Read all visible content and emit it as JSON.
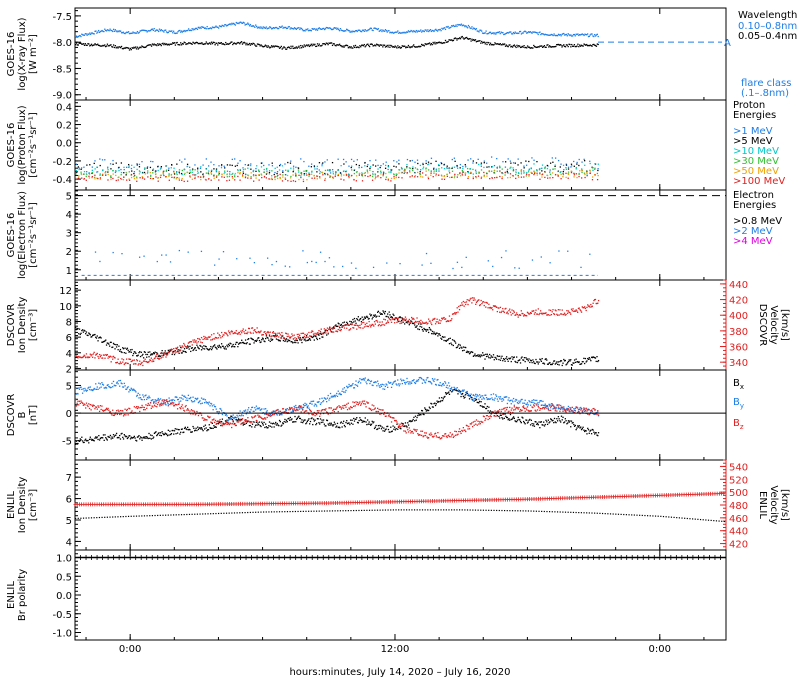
{
  "xaxis": {
    "title": "hours:minutes, July 14, 2020 – July 16, 2020",
    "range_hours": [
      -2.5,
      27
    ],
    "ticks": [
      {
        "hour": 0,
        "label": "0:00"
      },
      {
        "hour": 12,
        "label": "12:00"
      },
      {
        "hour": 24,
        "label": "0:00"
      }
    ]
  },
  "colors": {
    "black": "#000000",
    "blue": "#1e7ee6",
    "cyan": "#00c8c8",
    "green": "#30c030",
    "orange": "#f0a000",
    "red": "#e02020",
    "magenta": "#e000e0"
  },
  "chart_data": [
    {
      "id": "xray",
      "type": "scatter",
      "ylabel": [
        "GOES-16",
        "log(X-ray Flux)",
        "[W m⁻²]"
      ],
      "ylim": [
        -9.1,
        -7.35
      ],
      "yticks": [
        -7.5,
        -8.0,
        -8.5,
        -9.0
      ],
      "ytick_labels": [
        "-7.5",
        "-8.0",
        "-8.5",
        "-9.0"
      ],
      "legend_title": "Wavelength",
      "series": [
        {
          "name": "0.10–0.8nm",
          "color": "blue",
          "x": [
            -2.5,
            -1,
            0,
            1,
            2,
            3,
            4,
            5,
            6,
            7,
            8,
            9,
            10,
            11,
            12,
            13,
            14,
            15,
            16,
            17,
            18,
            19,
            20,
            21.2
          ],
          "y": [
            -7.88,
            -7.75,
            -7.82,
            -7.75,
            -7.8,
            -7.72,
            -7.7,
            -7.62,
            -7.72,
            -7.7,
            -7.76,
            -7.72,
            -7.78,
            -7.74,
            -7.8,
            -7.78,
            -7.75,
            -7.65,
            -7.8,
            -7.82,
            -7.8,
            -7.84,
            -7.85,
            -7.86
          ]
        },
        {
          "name": "0.05–0.4nm",
          "color": "black",
          "x": [
            -2.5,
            -1,
            0,
            1,
            2,
            3,
            4,
            5,
            6,
            7,
            8,
            9,
            10,
            11,
            12,
            13,
            14,
            15,
            16,
            17,
            18,
            19,
            20,
            21.2
          ],
          "y": [
            -8.02,
            -8.05,
            -8.12,
            -8.04,
            -8.02,
            -8.0,
            -8.02,
            -8.0,
            -8.06,
            -8.1,
            -8.06,
            -8.02,
            -8.08,
            -8.04,
            -8.08,
            -8.06,
            -8.0,
            -7.9,
            -8.0,
            -8.05,
            -8.08,
            -8.06,
            -8.05,
            -8.04
          ]
        }
      ],
      "hline": {
        "y": -8.0,
        "color": "blue",
        "label": "A"
      },
      "annotations": [
        {
          "text": "flare class",
          "color": "blue"
        },
        {
          "text": "(.1–.8nm)",
          "color": "blue"
        }
      ]
    },
    {
      "id": "proton",
      "type": "scatter",
      "ylabel": [
        "GOES-16",
        "log(Proton Flux)",
        "[cm⁻²s⁻¹sr⁻¹]"
      ],
      "ylim": [
        -0.52,
        0.47
      ],
      "yticks": [
        0.4,
        0.2,
        0.0,
        -0.2,
        -0.4
      ],
      "ytick_labels": [
        "0.4",
        "0.2",
        "0.0",
        "-0.2",
        "-0.4"
      ],
      "legend_title": [
        "Proton",
        "Energies"
      ],
      "series": [
        {
          "name": ">1 MeV",
          "color": "blue",
          "base": -0.25,
          "spread": 0.08
        },
        {
          "name": ">5 MeV",
          "color": "black",
          "base": -0.28,
          "spread": 0.07
        },
        {
          "name": ">10 MeV",
          "color": "cyan",
          "base": -0.3,
          "spread": 0.06
        },
        {
          "name": ">30 MeV",
          "color": "green",
          "base": -0.33,
          "spread": 0.05
        },
        {
          "name": ">50 MeV",
          "color": "orange",
          "base": -0.36,
          "spread": 0.04
        },
        {
          "name": ">100 MeV",
          "color": "red",
          "base": -0.38,
          "spread": 0.04
        }
      ]
    },
    {
      "id": "electron",
      "type": "scatter",
      "ylabel": [
        "GOES-16",
        "log(Electron Flux)",
        "[cm⁻²s⁻¹sr⁻¹]"
      ],
      "ylim": [
        0.45,
        5.3
      ],
      "yticks": [
        5,
        4,
        3,
        2,
        1
      ],
      "ytick_labels": [
        "5",
        "4",
        "3",
        "2",
        "1"
      ],
      "legend_title": [
        "Electron",
        "Energies"
      ],
      "series": [
        {
          "name": ">0.8 MeV",
          "color": "black",
          "base": 5.0,
          "style": "dashed"
        },
        {
          "name": ">2 MeV",
          "color": "blue",
          "base": 1.6,
          "spread": 0.6
        },
        {
          "name": ">4 MeV",
          "color": "magenta"
        }
      ],
      "hline": {
        "y": 0.7,
        "color": "blue"
      }
    },
    {
      "id": "density_speed",
      "type": "scatter",
      "ylabel": [
        "DSCOVR",
        "Ion Density",
        "[cm⁻³]"
      ],
      "ylim": [
        1.8,
        13.3
      ],
      "yticks": [
        12,
        10,
        8,
        6,
        4,
        2
      ],
      "ytick_labels": [
        "12",
        "10",
        "8",
        "6",
        "4",
        "2"
      ],
      "ylabel_right": [
        "DSCOVR",
        "Velocity",
        "[km/s]"
      ],
      "ylim_right": [
        330,
        445
      ],
      "yticks_right": [
        440,
        420,
        400,
        380,
        360,
        340
      ],
      "ytick_labels_right": [
        "440",
        "420",
        "400",
        "380",
        "360",
        "340"
      ],
      "series": [
        {
          "name": "density",
          "axis": "left",
          "color": "black",
          "x": [
            -2.5,
            -1.5,
            -0.5,
            0.5,
            1.5,
            2.5,
            3.5,
            4.5,
            5.5,
            6.5,
            7.5,
            8.5,
            9.5,
            10.5,
            11.5,
            12.5,
            13.5,
            14.5,
            15.5,
            16.5,
            17.5,
            18.5,
            19.5,
            20.5,
            21.2
          ],
          "y": [
            7.0,
            6.0,
            4.6,
            3.8,
            4.0,
            4.5,
            4.8,
            5.0,
            5.6,
            6.0,
            5.6,
            6.2,
            7.6,
            8.5,
            9.2,
            8.0,
            7.0,
            5.5,
            4.0,
            3.4,
            3.2,
            3.0,
            2.8,
            3.0,
            3.3
          ]
        },
        {
          "name": "velocity",
          "axis": "right",
          "color": "red",
          "x": [
            -2.5,
            -1.5,
            -0.5,
            0.5,
            1.5,
            2.5,
            3.5,
            4.5,
            5.5,
            6.5,
            7.5,
            8.5,
            9.5,
            10.5,
            11.5,
            12.5,
            13.5,
            14.5,
            15,
            15.5,
            16.5,
            17.5,
            18.5,
            19.5,
            20.5,
            21.2
          ],
          "y": [
            348,
            350,
            342,
            340,
            350,
            362,
            372,
            378,
            382,
            376,
            372,
            380,
            384,
            388,
            392,
            395,
            392,
            396,
            415,
            420,
            410,
            402,
            405,
            404,
            408,
            420
          ]
        }
      ]
    },
    {
      "id": "bfield",
      "type": "scatter",
      "ylabel": [
        "DSCOVR",
        "B",
        "[nT]"
      ],
      "ylim": [
        -8.5,
        7.8
      ],
      "yticks": [
        5,
        0,
        -5
      ],
      "ytick_labels": [
        "5",
        "0",
        "-5"
      ],
      "legend": [
        "Bx",
        "By",
        "Bz"
      ],
      "series": [
        {
          "name": "Bx",
          "color": "black",
          "x": [
            -2.5,
            -1.5,
            -0.5,
            0.5,
            1.5,
            2.5,
            3.5,
            4.5,
            5.5,
            6.5,
            7.5,
            8.5,
            9.5,
            10.5,
            11.5,
            12.5,
            13.5,
            14.5,
            15.5,
            16.5,
            17.5,
            18.5,
            19.5,
            20.5,
            21.2
          ],
          "y": [
            -5,
            -4.5,
            -4,
            -4.5,
            -3.5,
            -3,
            -2.5,
            -1,
            -2,
            -2,
            -1,
            -1.5,
            -2,
            -1,
            -3,
            -2,
            1,
            4,
            3,
            0,
            -1,
            -2,
            -1,
            -3,
            -3.5
          ]
        },
        {
          "name": "By",
          "color": "blue",
          "x": [
            -2.5,
            -1.5,
            -0.5,
            0.5,
            1.5,
            2.5,
            3.5,
            4.5,
            5.5,
            6.5,
            7.5,
            8.5,
            9.5,
            10.5,
            11.5,
            12.5,
            13.5,
            14.5,
            15.5,
            16.5,
            17.5,
            18.5,
            19.5,
            20.5,
            21.2
          ],
          "y": [
            4,
            5,
            5.5,
            3,
            2,
            3,
            2,
            -1,
            1,
            0,
            1,
            2,
            4,
            6,
            5,
            6,
            6,
            5,
            3,
            3,
            2,
            2,
            1,
            0.5,
            0
          ]
        },
        {
          "name": "Bz",
          "color": "red",
          "x": [
            -2.5,
            -1.5,
            -0.5,
            0.5,
            1.5,
            2.5,
            3.5,
            4.5,
            5.5,
            6.5,
            7.5,
            8.5,
            9.5,
            10.5,
            11.5,
            12.5,
            13.5,
            14.5,
            15.5,
            16.5,
            17.5,
            18.5,
            19.5,
            20.5,
            21.2
          ],
          "y": [
            2,
            1,
            0,
            1,
            2,
            1,
            -1,
            -2,
            -1,
            0,
            1,
            0,
            1,
            2,
            0,
            -3,
            -4,
            -4,
            -2,
            0,
            1,
            1,
            1,
            0.5,
            0.3
          ]
        }
      ]
    },
    {
      "id": "enlil_density",
      "type": "scatter",
      "ylabel": [
        "ENLIL",
        "Ion Density",
        "[cm⁻³]"
      ],
      "ylim": [
        3.6,
        7.8
      ],
      "yticks": [
        7,
        6,
        5,
        4
      ],
      "ytick_labels": [
        "7",
        "6",
        "5",
        "4"
      ],
      "ylabel_right": [
        "ENLIL",
        "Velocity",
        "[km/s]"
      ],
      "ylim_right": [
        410,
        550
      ],
      "yticks_right": [
        540,
        520,
        500,
        480,
        460,
        440,
        420
      ],
      "ytick_labels_right": [
        "540",
        "520",
        "500",
        "480",
        "460",
        "440",
        "420"
      ],
      "series": [
        {
          "name": "density",
          "axis": "left",
          "color": "black",
          "x": [
            -2.5,
            0,
            3,
            6,
            9,
            12,
            15,
            18,
            21,
            24,
            27
          ],
          "y": [
            5.1,
            5.2,
            5.3,
            5.4,
            5.45,
            5.5,
            5.5,
            5.45,
            5.35,
            5.2,
            4.95
          ]
        },
        {
          "name": "velocity",
          "axis": "right",
          "color": "red",
          "x": [
            -2.5,
            0,
            3,
            6,
            9,
            12,
            15,
            18,
            21,
            24,
            27
          ],
          "y": [
            481,
            481,
            481,
            482,
            483,
            485,
            487,
            489,
            492,
            495,
            498
          ]
        }
      ]
    },
    {
      "id": "enlil_polarity",
      "type": "scatter",
      "ylabel": [
        "ENLIL",
        "Br polarity"
      ],
      "ylim": [
        -1.2,
        1.2
      ],
      "yticks": [
        1.0,
        0.5,
        0.0,
        -0.5,
        -1.0
      ],
      "ytick_labels": [
        "1.0",
        "0.5",
        "0.0",
        "-0.5",
        "-1.0"
      ],
      "series": [
        {
          "name": "polarity",
          "color": "black",
          "x": [
            -2.5,
            27
          ],
          "y": [
            1.0,
            1.0
          ]
        }
      ]
    }
  ]
}
